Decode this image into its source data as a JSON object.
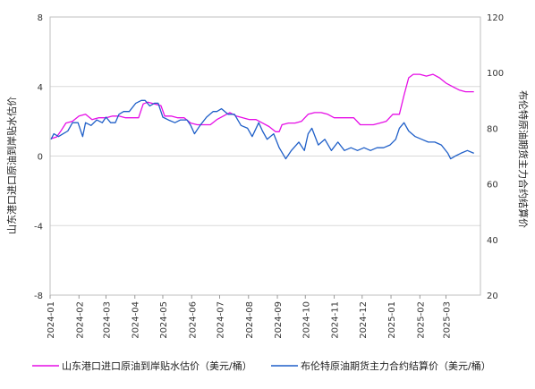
{
  "chart_data": {
    "type": "line",
    "y_left": {
      "label": "山东港口进口原油到岸贴水估价",
      "ylim": [
        -8,
        8
      ],
      "ticks": [
        -8,
        -4,
        0,
        4,
        8
      ]
    },
    "y_right": {
      "label": "布伦特原油期货主力合约结算价",
      "ylim": [
        20,
        120
      ],
      "ticks": [
        20,
        40,
        60,
        80,
        100,
        120
      ]
    },
    "x_ticks": [
      "2024-01",
      "2024-02",
      "2024-03",
      "2024-04",
      "2024-05",
      "2024-06",
      "2024-07",
      "2024-08",
      "2024-09",
      "2024-10",
      "2024-11",
      "2024-12",
      "2025-01",
      "2025-02",
      "2025-03"
    ],
    "grid": true,
    "legend_position": "bottom",
    "colors": {
      "premium": "#e60ee6",
      "brent": "#1f5fc8"
    },
    "series": [
      {
        "name": "山东港口进口原油到岸贴水估价（美元/桶）",
        "axis": "left",
        "points": [
          [
            "2024-01-02",
            1.0
          ],
          [
            "2024-01-08",
            1.1
          ],
          [
            "2024-01-12",
            1.4
          ],
          [
            "2024-01-18",
            1.9
          ],
          [
            "2024-01-25",
            2.0
          ],
          [
            "2024-02-01",
            2.3
          ],
          [
            "2024-02-08",
            2.4
          ],
          [
            "2024-02-15",
            2.1
          ],
          [
            "2024-02-22",
            2.2
          ],
          [
            "2024-03-01",
            2.2
          ],
          [
            "2024-03-08",
            2.3
          ],
          [
            "2024-03-15",
            2.3
          ],
          [
            "2024-03-22",
            2.2
          ],
          [
            "2024-03-29",
            2.2
          ],
          [
            "2024-04-05",
            2.2
          ],
          [
            "2024-04-10",
            3.0
          ],
          [
            "2024-04-15",
            3.1
          ],
          [
            "2024-04-22",
            3.0
          ],
          [
            "2024-04-29",
            2.9
          ],
          [
            "2024-05-03",
            2.3
          ],
          [
            "2024-05-10",
            2.3
          ],
          [
            "2024-05-17",
            2.2
          ],
          [
            "2024-05-24",
            2.2
          ],
          [
            "2024-05-31",
            1.9
          ],
          [
            "2024-06-07",
            1.8
          ],
          [
            "2024-06-14",
            1.8
          ],
          [
            "2024-06-21",
            1.8
          ],
          [
            "2024-06-28",
            2.1
          ],
          [
            "2024-07-05",
            2.3
          ],
          [
            "2024-07-12",
            2.5
          ],
          [
            "2024-07-19",
            2.3
          ],
          [
            "2024-07-26",
            2.2
          ],
          [
            "2024-08-02",
            2.1
          ],
          [
            "2024-08-09",
            2.1
          ],
          [
            "2024-08-16",
            1.9
          ],
          [
            "2024-08-23",
            1.7
          ],
          [
            "2024-08-30",
            1.4
          ],
          [
            "2024-09-03",
            1.4
          ],
          [
            "2024-09-06",
            1.8
          ],
          [
            "2024-09-13",
            1.9
          ],
          [
            "2024-09-20",
            1.9
          ],
          [
            "2024-09-27",
            2.0
          ],
          [
            "2024-10-04",
            2.4
          ],
          [
            "2024-10-11",
            2.5
          ],
          [
            "2024-10-18",
            2.5
          ],
          [
            "2024-10-25",
            2.4
          ],
          [
            "2024-11-01",
            2.2
          ],
          [
            "2024-11-08",
            2.2
          ],
          [
            "2024-11-15",
            2.2
          ],
          [
            "2024-11-22",
            2.2
          ],
          [
            "2024-11-29",
            1.8
          ],
          [
            "2024-12-06",
            1.8
          ],
          [
            "2024-12-13",
            1.8
          ],
          [
            "2024-12-20",
            1.9
          ],
          [
            "2024-12-27",
            2.0
          ],
          [
            "2025-01-03",
            2.4
          ],
          [
            "2025-01-10",
            2.4
          ],
          [
            "2025-01-15",
            3.5
          ],
          [
            "2025-01-20",
            4.5
          ],
          [
            "2025-01-25",
            4.7
          ],
          [
            "2025-02-01",
            4.7
          ],
          [
            "2025-02-08",
            4.6
          ],
          [
            "2025-02-15",
            4.7
          ],
          [
            "2025-02-22",
            4.5
          ],
          [
            "2025-03-01",
            4.2
          ],
          [
            "2025-03-08",
            4.0
          ],
          [
            "2025-03-15",
            3.8
          ],
          [
            "2025-03-22",
            3.7
          ],
          [
            "2025-03-31",
            3.7
          ]
        ]
      },
      {
        "name": "布伦特原油期货主力合约结算价（美元/桶）",
        "axis": "right",
        "points": [
          [
            "2024-01-02",
            76
          ],
          [
            "2024-01-05",
            78
          ],
          [
            "2024-01-10",
            77
          ],
          [
            "2024-01-15",
            78
          ],
          [
            "2024-01-20",
            79
          ],
          [
            "2024-01-25",
            82
          ],
          [
            "2024-01-31",
            82
          ],
          [
            "2024-02-05",
            77
          ],
          [
            "2024-02-08",
            82
          ],
          [
            "2024-02-14",
            81
          ],
          [
            "2024-02-20",
            83
          ],
          [
            "2024-02-26",
            82
          ],
          [
            "2024-03-01",
            84
          ],
          [
            "2024-03-06",
            82
          ],
          [
            "2024-03-11",
            82
          ],
          [
            "2024-03-15",
            85
          ],
          [
            "2024-03-20",
            86
          ],
          [
            "2024-03-26",
            86
          ],
          [
            "2024-04-02",
            89
          ],
          [
            "2024-04-08",
            90
          ],
          [
            "2024-04-12",
            90
          ],
          [
            "2024-04-17",
            88
          ],
          [
            "2024-04-22",
            89
          ],
          [
            "2024-04-26",
            89
          ],
          [
            "2024-05-01",
            84
          ],
          [
            "2024-05-07",
            83
          ],
          [
            "2024-05-14",
            82
          ],
          [
            "2024-05-20",
            83
          ],
          [
            "2024-05-27",
            83
          ],
          [
            "2024-05-31",
            81
          ],
          [
            "2024-06-04",
            78
          ],
          [
            "2024-06-10",
            81
          ],
          [
            "2024-06-17",
            84
          ],
          [
            "2024-06-24",
            86
          ],
          [
            "2024-06-28",
            86
          ],
          [
            "2024-07-03",
            87
          ],
          [
            "2024-07-10",
            85
          ],
          [
            "2024-07-17",
            85
          ],
          [
            "2024-07-24",
            81
          ],
          [
            "2024-07-31",
            80
          ],
          [
            "2024-08-05",
            77
          ],
          [
            "2024-08-12",
            82
          ],
          [
            "2024-08-16",
            79
          ],
          [
            "2024-08-21",
            76
          ],
          [
            "2024-08-28",
            78
          ],
          [
            "2024-09-03",
            73
          ],
          [
            "2024-09-10",
            69
          ],
          [
            "2024-09-16",
            72
          ],
          [
            "2024-09-24",
            75
          ],
          [
            "2024-09-30",
            72
          ],
          [
            "2024-10-04",
            78
          ],
          [
            "2024-10-08",
            80
          ],
          [
            "2024-10-15",
            74
          ],
          [
            "2024-10-22",
            76
          ],
          [
            "2024-10-29",
            72
          ],
          [
            "2024-11-05",
            75
          ],
          [
            "2024-11-12",
            72
          ],
          [
            "2024-11-19",
            73
          ],
          [
            "2024-11-26",
            72
          ],
          [
            "2024-12-03",
            73
          ],
          [
            "2024-12-10",
            72
          ],
          [
            "2024-12-17",
            73
          ],
          [
            "2024-12-24",
            73
          ],
          [
            "2024-12-31",
            74
          ],
          [
            "2025-01-06",
            76
          ],
          [
            "2025-01-10",
            80
          ],
          [
            "2025-01-15",
            82
          ],
          [
            "2025-01-20",
            79
          ],
          [
            "2025-01-27",
            77
          ],
          [
            "2025-02-03",
            76
          ],
          [
            "2025-02-10",
            75
          ],
          [
            "2025-02-17",
            75
          ],
          [
            "2025-02-24",
            74
          ],
          [
            "2025-03-03",
            71
          ],
          [
            "2025-03-06",
            69
          ],
          [
            "2025-03-11",
            70
          ],
          [
            "2025-03-17",
            71
          ],
          [
            "2025-03-24",
            72
          ],
          [
            "2025-03-31",
            71
          ]
        ]
      }
    ]
  }
}
